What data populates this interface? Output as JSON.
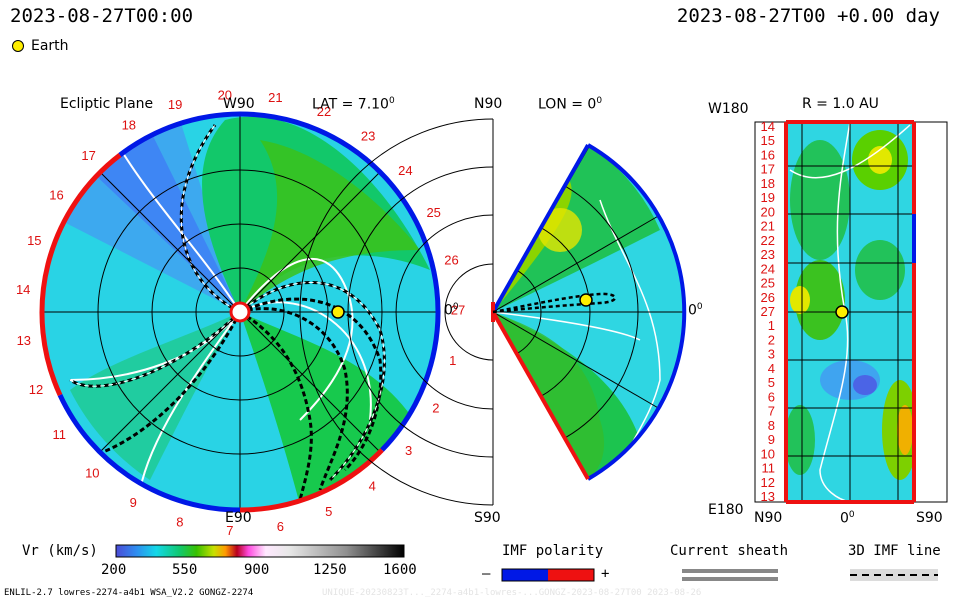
{
  "header": {
    "date_left": "2023-08-27T00:00",
    "date_right": "2023-08-27T00 +0.00 day",
    "legend_earth": "Earth"
  },
  "panels": {
    "ecliptic": {
      "title": "Ecliptic Plane",
      "lat": "LAT = 7.10",
      "lat_sup": "0",
      "top": "W90",
      "bottom": "E90",
      "right": "0",
      "right_sup": "0",
      "carrington_ticks": [
        "20",
        "21",
        "22",
        "23",
        "24",
        "25",
        "26",
        "27",
        "1",
        "2",
        "3",
        "4",
        "5",
        "6",
        "7",
        "8",
        "9",
        "10",
        "11",
        "12",
        "13",
        "14",
        "15",
        "16",
        "17",
        "18",
        "19"
      ]
    },
    "meridional": {
      "lon": "LON = 0",
      "lon_sup": "0",
      "top": "N90",
      "bottom": "S90",
      "right": "0",
      "right_sup": "0"
    },
    "synoptic": {
      "title": "R = 1.0 AU",
      "top_left": "W180",
      "bottom_left": "E180",
      "x_left": "N90",
      "x_mid": "0",
      "x_mid_sup": "0",
      "x_right": "S90",
      "y_ticks": [
        "14",
        "15",
        "16",
        "17",
        "18",
        "19",
        "20",
        "21",
        "22",
        "23",
        "24",
        "25",
        "26",
        "27",
        "1",
        "2",
        "3",
        "4",
        "5",
        "6",
        "7",
        "8",
        "9",
        "10",
        "11",
        "12",
        "13"
      ]
    }
  },
  "colorbar": {
    "label": "Vr (km/s)",
    "ticks": [
      "200",
      "550",
      "900",
      "1250",
      "1600"
    ]
  },
  "imf_legend": {
    "title": "IMF polarity",
    "minus": "–",
    "plus": "+",
    "sheath_title": "Current sheath",
    "line_title": "3D IMF line"
  },
  "footer": {
    "left": "ENLIL-2.7 lowres-2274-a4b1 WSA_V2.2 GONGZ-2274",
    "right": "UNIQUE-20230823T..._2274-a4b1-lowres-...GONGZ-2023-08-27T00 2023-08-26"
  },
  "colors": {
    "polarity_negative": "#0018e6",
    "polarity_positive": "#ee1111",
    "carrington_label": "#dd1111",
    "earth_fill": "#ffee00"
  },
  "chart_data": [
    {
      "type": "heatmap",
      "title": "Ecliptic Plane",
      "projection": "polar",
      "earth_longitude_deg": 0,
      "earth_r_au": 1.0
    },
    {
      "type": "heatmap",
      "title": "LON = 0",
      "projection": "meridional",
      "latitude_range_deg": [
        -60,
        60
      ],
      "earth_r_au": 1.0
    },
    {
      "type": "heatmap",
      "title": "R = 1.0 AU",
      "xlim_labels": [
        "N90",
        "0",
        "S90"
      ],
      "ylim_labels": [
        "W180",
        "E180"
      ]
    }
  ]
}
